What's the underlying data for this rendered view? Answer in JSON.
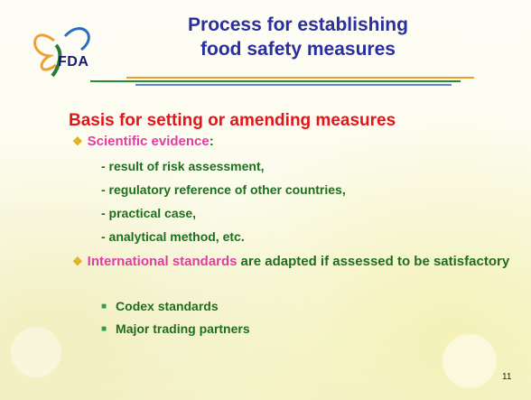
{
  "logo": {
    "text": "FDA"
  },
  "title": [
    "Process for establishing",
    "food safety measures"
  ],
  "heading": "Basis for setting or amending measures",
  "bullets": [
    {
      "highlight": "Scientific evidence",
      "rest": ":",
      "items": [
        "- result of risk assessment,",
        "- regulatory reference of other countries,",
        "- practical case,",
        "- analytical method, etc."
      ]
    },
    {
      "highlight": "International standards",
      "rest": "are adapted if assessed to be satisfactory",
      "items": [
        "Codex standards",
        "Major trading partners"
      ]
    }
  ],
  "page_number": "11"
}
